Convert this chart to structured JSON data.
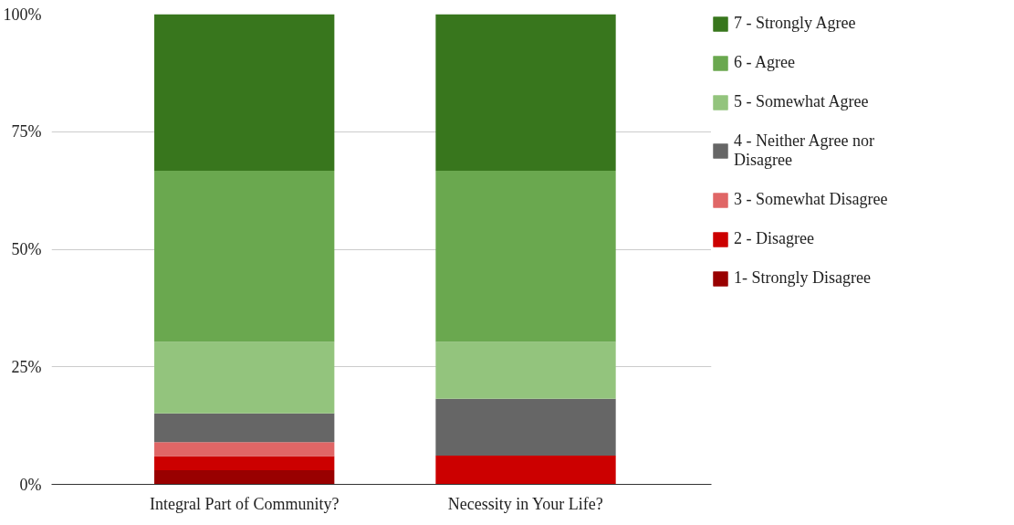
{
  "chart_data": {
    "type": "bar",
    "stacked": true,
    "categories": [
      "Integral Part of Community?",
      "Necessity in Your Life?"
    ],
    "series": [
      {
        "name": "1- Strongly Disagree",
        "color": "#990000",
        "values": [
          3.0,
          0
        ]
      },
      {
        "name": "2 - Disagree",
        "color": "#cc0000",
        "values": [
          3.0,
          6.1
        ]
      },
      {
        "name": "3 - Somewhat Disagree",
        "color": "#e06666",
        "values": [
          3.0,
          0
        ]
      },
      {
        "name": "4 - Neither Agree nor Disagree",
        "color": "#666666",
        "values": [
          6.1,
          12.1
        ]
      },
      {
        "name": "5 - Somewhat Agree",
        "color": "#93c47d",
        "values": [
          15.2,
          12.1
        ]
      },
      {
        "name": "6 - Agree",
        "color": "#6aa84f",
        "values": [
          36.4,
          36.4
        ]
      },
      {
        "name": "7 - Strongly Agree",
        "color": "#38761d",
        "values": [
          33.3,
          33.3
        ]
      }
    ],
    "ylim": [
      0,
      100
    ],
    "yticks": [
      {
        "value": 0,
        "label": "0%"
      },
      {
        "value": 25,
        "label": "25%"
      },
      {
        "value": 50,
        "label": "50%"
      },
      {
        "value": 75,
        "label": "75%"
      },
      {
        "value": 100,
        "label": "100%"
      }
    ],
    "grid": "y",
    "legend": "right"
  }
}
